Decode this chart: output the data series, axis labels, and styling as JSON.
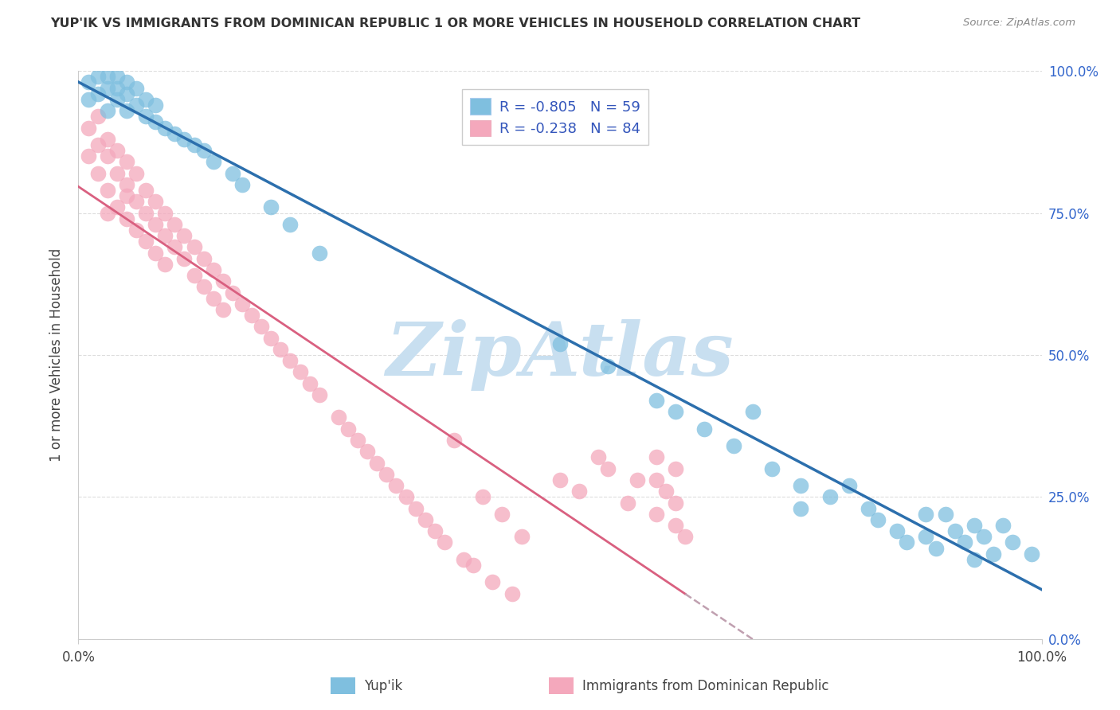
{
  "title": "YUP'IK VS IMMIGRANTS FROM DOMINICAN REPUBLIC 1 OR MORE VEHICLES IN HOUSEHOLD CORRELATION CHART",
  "source": "Source: ZipAtlas.com",
  "ylabel": "1 or more Vehicles in Household",
  "legend_label1": "Yup'ik",
  "legend_label2": "Immigrants from Dominican Republic",
  "R1": -0.805,
  "N1": 59,
  "R2": -0.238,
  "N2": 84,
  "color_blue": "#7fbfdf",
  "color_pink": "#f4a8bc",
  "color_blue_line": "#2c6fad",
  "color_pink_line": "#d96080",
  "color_dashed_line": "#c0a0b0",
  "watermark_color": "#c8dff0",
  "blue_x": [
    0.01,
    0.01,
    0.02,
    0.02,
    0.03,
    0.03,
    0.03,
    0.04,
    0.04,
    0.04,
    0.05,
    0.05,
    0.05,
    0.06,
    0.06,
    0.07,
    0.07,
    0.08,
    0.08,
    0.09,
    0.1,
    0.11,
    0.12,
    0.13,
    0.14,
    0.16,
    0.17,
    0.2,
    0.22,
    0.25,
    0.5,
    0.55,
    0.6,
    0.62,
    0.65,
    0.68,
    0.7,
    0.72,
    0.75,
    0.75,
    0.78,
    0.8,
    0.82,
    0.83,
    0.85,
    0.86,
    0.88,
    0.88,
    0.89,
    0.9,
    0.91,
    0.92,
    0.93,
    0.93,
    0.94,
    0.95,
    0.96,
    0.97,
    0.99
  ],
  "blue_y": [
    0.95,
    0.98,
    0.96,
    0.99,
    0.93,
    0.97,
    0.99,
    0.95,
    0.97,
    0.99,
    0.93,
    0.96,
    0.98,
    0.94,
    0.97,
    0.92,
    0.95,
    0.91,
    0.94,
    0.9,
    0.89,
    0.88,
    0.87,
    0.86,
    0.84,
    0.82,
    0.8,
    0.76,
    0.73,
    0.68,
    0.52,
    0.48,
    0.42,
    0.4,
    0.37,
    0.34,
    0.4,
    0.3,
    0.27,
    0.23,
    0.25,
    0.27,
    0.23,
    0.21,
    0.19,
    0.17,
    0.22,
    0.18,
    0.16,
    0.22,
    0.19,
    0.17,
    0.14,
    0.2,
    0.18,
    0.15,
    0.2,
    0.17,
    0.15
  ],
  "pink_x": [
    0.01,
    0.01,
    0.02,
    0.02,
    0.02,
    0.03,
    0.03,
    0.03,
    0.03,
    0.04,
    0.04,
    0.04,
    0.05,
    0.05,
    0.05,
    0.05,
    0.06,
    0.06,
    0.06,
    0.07,
    0.07,
    0.07,
    0.08,
    0.08,
    0.08,
    0.09,
    0.09,
    0.09,
    0.1,
    0.1,
    0.11,
    0.11,
    0.12,
    0.12,
    0.13,
    0.13,
    0.14,
    0.14,
    0.15,
    0.15,
    0.16,
    0.17,
    0.18,
    0.19,
    0.2,
    0.21,
    0.22,
    0.23,
    0.24,
    0.25,
    0.27,
    0.28,
    0.29,
    0.3,
    0.31,
    0.32,
    0.33,
    0.34,
    0.35,
    0.36,
    0.37,
    0.38,
    0.39,
    0.4,
    0.41,
    0.42,
    0.43,
    0.44,
    0.45,
    0.46,
    0.5,
    0.52,
    0.54,
    0.55,
    0.57,
    0.58,
    0.6,
    0.6,
    0.6,
    0.61,
    0.62,
    0.62,
    0.62,
    0.63
  ],
  "pink_y": [
    0.85,
    0.9,
    0.87,
    0.82,
    0.92,
    0.85,
    0.79,
    0.88,
    0.75,
    0.82,
    0.86,
    0.76,
    0.8,
    0.84,
    0.74,
    0.78,
    0.77,
    0.82,
    0.72,
    0.75,
    0.79,
    0.7,
    0.73,
    0.77,
    0.68,
    0.71,
    0.75,
    0.66,
    0.69,
    0.73,
    0.67,
    0.71,
    0.64,
    0.69,
    0.62,
    0.67,
    0.6,
    0.65,
    0.58,
    0.63,
    0.61,
    0.59,
    0.57,
    0.55,
    0.53,
    0.51,
    0.49,
    0.47,
    0.45,
    0.43,
    0.39,
    0.37,
    0.35,
    0.33,
    0.31,
    0.29,
    0.27,
    0.25,
    0.23,
    0.21,
    0.19,
    0.17,
    0.35,
    0.14,
    0.13,
    0.25,
    0.1,
    0.22,
    0.08,
    0.18,
    0.28,
    0.26,
    0.32,
    0.3,
    0.24,
    0.28,
    0.28,
    0.22,
    0.32,
    0.26,
    0.2,
    0.3,
    0.24,
    0.18
  ]
}
